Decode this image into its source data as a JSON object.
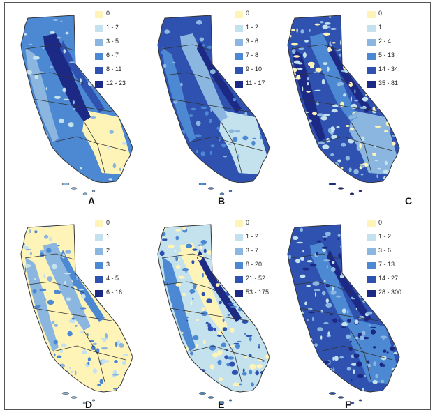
{
  "colors": {
    "c0": "#fff4b8",
    "c1": "#c3e2ee",
    "c2": "#8ab6df",
    "c3": "#4d88d2",
    "c4": "#2f52b0",
    "c5": "#1c2a86",
    "border": "#333333"
  },
  "panels": [
    {
      "letter": "A",
      "legend": [
        "0",
        "1 - 2",
        "3 - 5",
        "6 - 7",
        "8 - 11",
        "12 - 23"
      ],
      "pattern": "valley"
    },
    {
      "letter": "B",
      "legend": [
        "0",
        "1 - 2",
        "3 - 6",
        "7 - 8",
        "9 - 10",
        "11 - 17"
      ],
      "pattern": "broad"
    },
    {
      "letter": "C",
      "legend": [
        "0",
        "1",
        "2 - 4",
        "5 - 13",
        "14 - 34",
        "35 - 81"
      ],
      "pattern": "speckled"
    },
    {
      "letter": "D",
      "legend": [
        "0",
        "1",
        "2",
        "3",
        "4 - 5",
        "6 - 16"
      ],
      "pattern": "sparse"
    },
    {
      "letter": "E",
      "legend": [
        "0",
        "1 - 2",
        "3 - 7",
        "8 - 20",
        "21 - 52",
        "53 - 175"
      ],
      "pattern": "mountains"
    },
    {
      "letter": "F",
      "legend": [
        "0",
        "1 - 2",
        "3 - 6",
        "7 - 13",
        "14 - 27",
        "28 - 300"
      ],
      "pattern": "dense"
    }
  ]
}
